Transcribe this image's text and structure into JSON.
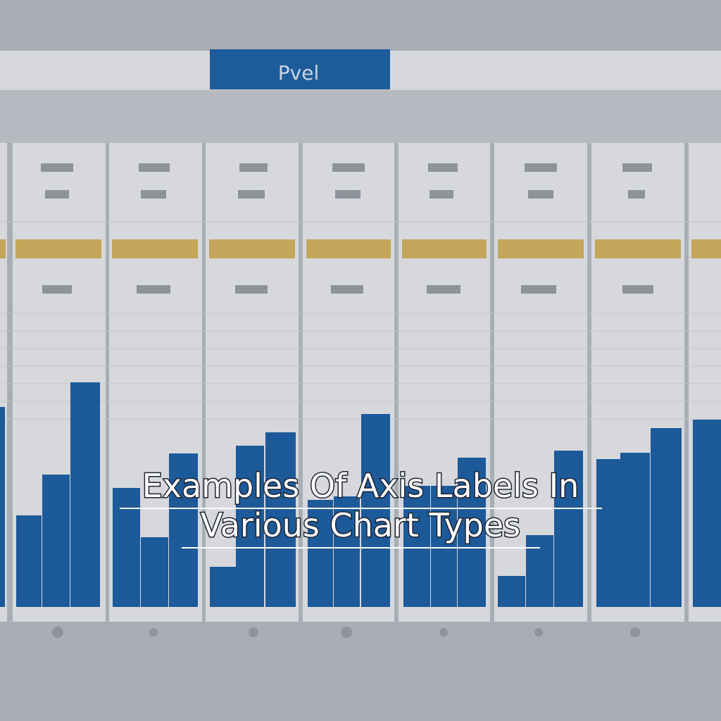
{
  "header": {
    "tab_label": "Pvel"
  },
  "overlay": {
    "title_line_1": "Examples Of Axis Labels In",
    "title_line_2": "Various Chart Types"
  }
}
